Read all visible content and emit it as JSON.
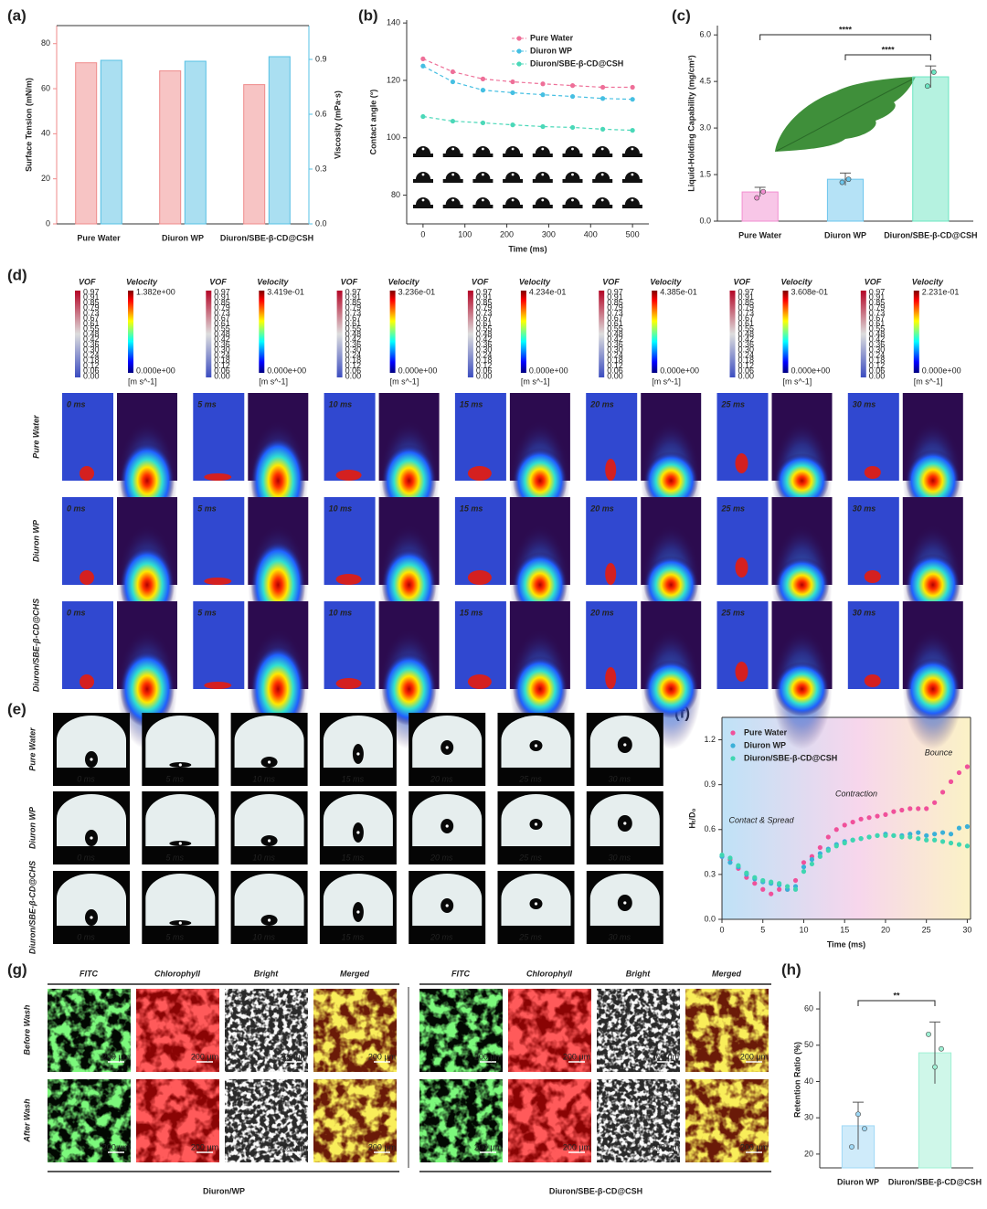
{
  "panel_labels": [
    "(a)",
    "(b)",
    "(c)",
    "(d)",
    "(e)",
    "(f)",
    "(g)",
    "(h)"
  ],
  "chart_data": [
    {
      "type": "bar",
      "categories": [
        "Pure Water",
        "Diuron WP",
        "Diuron/SBE-β-CD@CSH"
      ],
      "series": [
        {
          "color": "#ef8a8a",
          "values": [
            71.5,
            67.9,
            61.8
          ]
        },
        {
          "color": "#56c0e4",
          "values": [
            0.895,
            0.89,
            0.915
          ],
          "axis": "y2"
        }
      ],
      "ylabel": "Surface Tension (mN/m)",
      "y2label": "Viscosity (mPa·s)",
      "ylim": [
        0,
        88
      ],
      "yticks": [
        0,
        20,
        40,
        60,
        80
      ],
      "y2lim": [
        0,
        1.085
      ],
      "y2ticks": [
        {
          "value": 0,
          "label": "0.0"
        },
        0.3,
        0.6,
        0.9
      ]
    },
    {
      "type": "line",
      "x": [
        0,
        71,
        143,
        214,
        286,
        357,
        429,
        500
      ],
      "series": [
        {
          "name": "Pure Water",
          "color": "#ee6f98",
          "values": [
            127.5,
            123,
            120.5,
            119.5,
            118.8,
            118.2,
            117.6,
            117.6
          ]
        },
        {
          "name": "Diuron WP",
          "color": "#45bfe2",
          "values": [
            125,
            119.5,
            116.6,
            115.7,
            115,
            114.4,
            113.7,
            113.4
          ]
        },
        {
          "name": "Diuron/SBE-β-CD@CSH",
          "color": "#4ad8b8",
          "values": [
            107.4,
            105.8,
            105.2,
            104.5,
            103.9,
            103.6,
            103,
            102.6
          ]
        }
      ],
      "xlabel": "Time (ms)",
      "ylabel": "Contact angle (°)",
      "xlim": [
        -39,
        539
      ],
      "xticks": [
        0,
        100,
        200,
        300,
        400,
        500
      ],
      "ylim": [
        70,
        141
      ],
      "yticks": [
        80,
        100,
        120,
        140
      ],
      "legend": "upper right"
    },
    {
      "type": "bar",
      "categories": [
        "Pure Water",
        "Diuron WP",
        "Diuron/SBE-β-CD@CSH"
      ],
      "values": [
        0.94,
        1.35,
        4.65
      ],
      "errors": [
        0.15,
        0.2,
        0.35
      ],
      "points": [
        [
          0.75,
          0.95
        ],
        [
          1.25,
          1.35
        ],
        [
          4.35,
          4.8
        ]
      ],
      "colors": [
        "#f28ed0",
        "#6cc6ee",
        "#6ce6c2"
      ],
      "ylabel": "Liquid-Holding Capability (mg/cm²)",
      "ylim": [
        0,
        6.3
      ],
      "yticks": [
        {
          "value": 0,
          "label": "0.0"
        },
        1.5,
        {
          "value": 3,
          "label": "3.0"
        },
        4.5,
        {
          "value": 6,
          "label": "6.0"
        }
      ],
      "annotations": [
        "****",
        "****"
      ]
    },
    {
      "type": "scatter",
      "x": [
        0,
        1,
        2,
        3,
        4,
        5,
        6,
        7,
        8,
        9,
        10,
        11,
        12,
        13,
        14,
        15,
        16,
        17,
        18,
        19,
        20,
        21,
        22,
        23,
        24,
        25,
        26,
        27,
        28,
        29,
        30
      ],
      "series": [
        {
          "name": "Pure Water",
          "color": "#f0509a",
          "values": [
            0.42,
            0.4,
            0.34,
            0.28,
            0.24,
            0.2,
            0.17,
            0.2,
            0.2,
            0.26,
            0.38,
            0.42,
            0.48,
            0.55,
            0.6,
            0.63,
            0.65,
            0.67,
            0.68,
            0.69,
            0.7,
            0.72,
            0.73,
            0.74,
            0.74,
            0.74,
            0.78,
            0.85,
            0.92,
            0.98,
            1.02
          ]
        },
        {
          "name": "Diuron WP",
          "color": "#3ab0d8",
          "values": [
            0.42,
            0.38,
            0.35,
            0.3,
            0.27,
            0.25,
            0.24,
            0.23,
            0.2,
            0.22,
            0.35,
            0.4,
            0.44,
            0.47,
            0.5,
            0.52,
            0.53,
            0.54,
            0.55,
            0.56,
            0.57,
            0.56,
            0.56,
            0.57,
            0.58,
            0.56,
            0.57,
            0.58,
            0.57,
            0.61,
            0.62
          ]
        },
        {
          "name": "Diuron/SBE-β-CD@CSH",
          "color": "#3ed6b0",
          "values": [
            0.43,
            0.41,
            0.36,
            0.31,
            0.28,
            0.26,
            0.25,
            0.24,
            0.22,
            0.2,
            0.32,
            0.37,
            0.42,
            0.46,
            0.49,
            0.51,
            0.53,
            0.54,
            0.55,
            0.56,
            0.56,
            0.56,
            0.55,
            0.55,
            0.54,
            0.53,
            0.53,
            0.52,
            0.51,
            0.5,
            0.49
          ]
        }
      ],
      "xlabel": "Time (ms)",
      "ylabel": "Hₜ/D₀",
      "xlim": [
        0,
        30.4
      ],
      "xticks": [
        0,
        5,
        10,
        15,
        20,
        25,
        30
      ],
      "ylim": [
        0,
        1.35
      ],
      "yticks": [
        {
          "value": 0,
          "label": "0.0"
        },
        0.3,
        0.6,
        0.9,
        1.2
      ],
      "legend": "upper left",
      "annotations": [
        "Contact & Spread",
        "Contraction",
        "Bounce"
      ]
    },
    {
      "type": "bar",
      "categories": [
        "Diuron WP",
        "Diuron/SBE-β-CD@CSH"
      ],
      "values": [
        27.8,
        47.9
      ],
      "errors": [
        6.5,
        8.5
      ],
      "points": [
        [
          22,
          31,
          27
        ],
        [
          53,
          44,
          49
        ]
      ],
      "colors": [
        "#9fd8f5",
        "#9ff0d4"
      ],
      "ylabel": "Retention Ratio (%)",
      "ylim": [
        16.2,
        64.8
      ],
      "yticks": [
        20,
        30,
        40,
        50,
        60
      ],
      "annotations": [
        "**"
      ]
    }
  ],
  "simulation": {
    "columns": [
      "VOF",
      "Velocity"
    ],
    "times": [
      "0 ms",
      "5 ms",
      "10 ms",
      "15 ms",
      "20 ms",
      "25 ms",
      "30 ms"
    ],
    "rows": [
      "Pure Water",
      "Diuron WP",
      "Diuron/SBE-β-CD@CHS"
    ],
    "vof_ticks": [
      "0.97",
      "0.91",
      "0.85",
      "0.79",
      "0.73",
      "0.67",
      "0.61",
      "0.55",
      "0.48",
      "0.42",
      "0.36",
      "0.30",
      "0.24",
      "0.18",
      "0.12",
      "0.06",
      "0.00"
    ],
    "velocity_max": [
      "1.382e+00",
      "3.419e-01",
      "3.236e-01",
      "4.234e-01",
      "4.385e-01",
      "3.608e-01",
      "2.231e-01"
    ],
    "velocity_min": "0.000e+00",
    "unit": "[m s^-1]"
  },
  "photos": {
    "rows": [
      "Pure Water",
      "Diuron WP",
      "Diuron/SBE-β-CD@CHS"
    ],
    "times": [
      "0 ms",
      "5 ms",
      "10 ms",
      "15 ms",
      "20 ms",
      "25 ms",
      "30 ms"
    ]
  },
  "microscopy": {
    "channels": [
      "FITC",
      "Chlorophyll",
      "Bright",
      "Merged"
    ],
    "rows": [
      "Before Wash",
      "After Wash"
    ],
    "groups": [
      "Diuron/WP",
      "Diuron/SBE-β-CD@CSH"
    ],
    "scale_bar": "200 μm"
  }
}
